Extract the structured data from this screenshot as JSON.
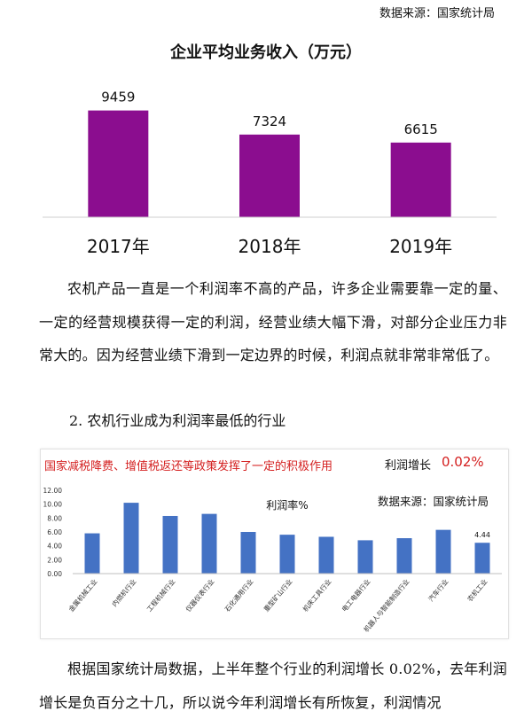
{
  "source_top": "数据来源：国家统计局",
  "chart_data": [
    {
      "type": "bar",
      "title": "企业平均业务收入（万元）",
      "categories": [
        "2017年",
        "2018年",
        "2019年"
      ],
      "values": [
        9459,
        7324,
        6615
      ],
      "data_labels": [
        "9459",
        "7324",
        "6615"
      ],
      "ylim": [
        0,
        11000
      ],
      "grid": false,
      "bar_color": "#8b0d8f"
    },
    {
      "type": "bar",
      "title": "利润率%",
      "categories": [
        "金属机械工业",
        "内燃机行业",
        "工程机械行业",
        "仪器仪表行业",
        "石化通用行业",
        "重型矿山行业",
        "机床工具行业",
        "电工电器行业",
        "机器人与智能制造行业",
        "汽车行业",
        "农机工业"
      ],
      "values": [
        5.8,
        10.2,
        8.3,
        8.6,
        6.0,
        5.6,
        5.3,
        4.8,
        5.1,
        6.3,
        4.44
      ],
      "annotated_label": "4.44",
      "y_ticks": [
        "0.00",
        "2.00",
        "4.00",
        "6.00",
        "8.00",
        "10.00",
        "12.00"
      ],
      "ylim": [
        0,
        12
      ],
      "grid": false,
      "bar_color": "#4472c4"
    }
  ],
  "paragraph1": "农机产品一直是一个利润率不高的产品，许多企业需要靠一定的量、一定的经营规模获得一定的利润，经营业绩大幅下滑，对部分企业压力非常大的。因为经营业绩下滑到一定边界的时候，利润点就非常非常低了。",
  "section_heading": "2. 农机行业成为利润率最低的行业",
  "policy_note": "国家减税降费、增值税返还等政策发挥了一定的积极作用",
  "profit_label": "利润增长",
  "profit_value": "0.02%",
  "source_chart2": "数据来源：国家统计局",
  "paragraph2": "根据国家统计局数据，上半年整个行业的利润增长 0.02%，去年利润增长是负百分之十几，所以说今年利润增长有所恢复，利润情况"
}
